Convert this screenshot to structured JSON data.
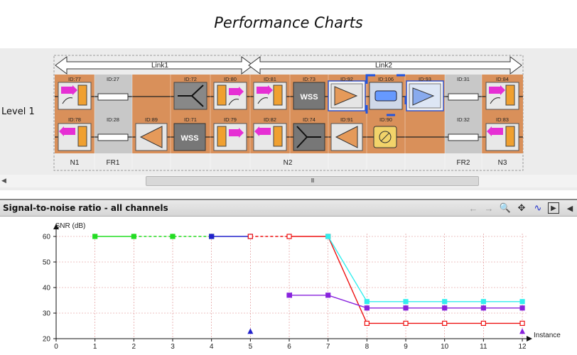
{
  "page_title": "Performance Charts",
  "topology": {
    "level_label": "Level 1",
    "links": [
      "Link1",
      "Link2"
    ],
    "top_ids": [
      "ID:77",
      "ID:27",
      "ID:72",
      "ID:80",
      "ID:81",
      "ID:73",
      "ID:92",
      "ID:106",
      "ID:93",
      "ID:31",
      "ID:84"
    ],
    "bottom_ids": [
      "ID:78",
      "ID:28",
      "ID:89",
      "ID:71",
      "ID:79",
      "ID:82",
      "ID:74",
      "ID:91",
      "ID:90",
      "ID:32",
      "ID:83"
    ],
    "node_labels": [
      "N1",
      "FR1",
      "N2",
      "FR2",
      "N3"
    ],
    "wss_label": "WSS",
    "scroll_thumb_label": "III"
  },
  "chart_panel": {
    "title": "Signal-to-noise ratio - all channels",
    "toolbar_icons": [
      "back-arrow-icon",
      "forward-arrow-icon",
      "zoom-icon",
      "pan-icon",
      "line-mode-icon",
      "step-forward-icon",
      "step-back-icon"
    ]
  },
  "chart_data": {
    "type": "line",
    "ylabel": "SNR (dB)",
    "xlabel": "Instance",
    "xlim": [
      0,
      12
    ],
    "ylim": [
      20,
      60
    ],
    "x_ticks": [
      "0",
      "1",
      "2",
      "3",
      "4",
      "5",
      "6",
      "7",
      "8",
      "9",
      "10",
      "11",
      "12"
    ],
    "y_ticks": [
      "20",
      "30",
      "40",
      "50",
      "60"
    ],
    "grid": true,
    "colors": {
      "green": "#22dd22",
      "blue": "#2222cc",
      "red": "#ee1111",
      "cyan": "#33eeee",
      "purple": "#8822dd"
    },
    "series": [
      {
        "color": "#22dd22",
        "marker": "square",
        "segments": [
          {
            "points": [
              [
                1,
                60
              ],
              [
                2,
                60
              ]
            ],
            "dash": false
          },
          {
            "points": [
              [
                2,
                60
              ],
              [
                3,
                60
              ],
              [
                4,
                60
              ]
            ],
            "dash": true
          }
        ]
      },
      {
        "color": "#2222cc",
        "marker": "square",
        "segments": [
          {
            "points": [
              [
                4,
                60
              ],
              [
                5,
                60
              ]
            ],
            "dash": false
          }
        ]
      },
      {
        "color": "#ee1111",
        "marker": "square-open",
        "segments": [
          {
            "points": [
              [
                5,
                60
              ],
              [
                6,
                60
              ]
            ],
            "dash": true
          },
          {
            "points": [
              [
                6,
                60
              ],
              [
                7,
                60
              ],
              [
                8,
                26
              ],
              [
                9,
                26
              ],
              [
                10,
                26
              ],
              [
                11,
                26
              ],
              [
                12,
                26
              ]
            ],
            "dash": false
          }
        ]
      },
      {
        "color": "#33eeee",
        "marker": "square",
        "segments": [
          {
            "points": [
              [
                7,
                60
              ],
              [
                8,
                34.5
              ],
              [
                9,
                34.5
              ],
              [
                10,
                34.5
              ],
              [
                11,
                34.5
              ],
              [
                12,
                34.5
              ]
            ],
            "dash": false
          }
        ]
      },
      {
        "color": "#8822dd",
        "marker": "square",
        "segments": [
          {
            "points": [
              [
                6,
                37
              ],
              [
                7,
                37
              ],
              [
                8,
                32
              ],
              [
                9,
                32
              ],
              [
                10,
                32
              ],
              [
                11,
                32
              ],
              [
                12,
                32
              ]
            ],
            "dash": false
          }
        ]
      }
    ],
    "markers": [
      {
        "x": 5,
        "y": 23,
        "shape": "triangle-up",
        "color": "#2222cc"
      },
      {
        "x": 12,
        "y": 23,
        "shape": "triangle-up",
        "color": "#8822dd"
      },
      {
        "x": 6,
        "y": 37,
        "shape": "triangle-left",
        "color": "#8822dd"
      }
    ]
  }
}
